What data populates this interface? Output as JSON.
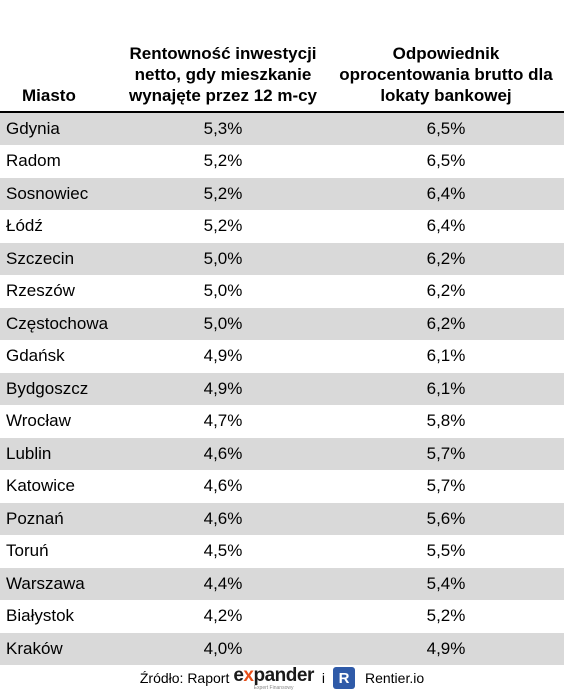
{
  "table": {
    "headers": {
      "city": "Miasto",
      "net_return": "Rentowność inwestycji netto, gdy mieszkanie wynajęte przez 12 m-cy",
      "gross_equivalent": "Odpowiednik oprocentowania brutto dla lokaty bankowej"
    },
    "rows": [
      {
        "city": "Gdynia",
        "net": "5,3%",
        "gross": "6,5%"
      },
      {
        "city": "Radom",
        "net": "5,2%",
        "gross": "6,5%"
      },
      {
        "city": "Sosnowiec",
        "net": "5,2%",
        "gross": "6,4%"
      },
      {
        "city": "Łódź",
        "net": "5,2%",
        "gross": "6,4%"
      },
      {
        "city": "Szczecin",
        "net": "5,0%",
        "gross": "6,2%"
      },
      {
        "city": "Rzeszów",
        "net": "5,0%",
        "gross": "6,2%"
      },
      {
        "city": "Częstochowa",
        "net": "5,0%",
        "gross": "6,2%"
      },
      {
        "city": "Gdańsk",
        "net": "4,9%",
        "gross": "6,1%"
      },
      {
        "city": "Bydgoszcz",
        "net": "4,9%",
        "gross": "6,1%"
      },
      {
        "city": "Wrocław",
        "net": "4,7%",
        "gross": "5,8%"
      },
      {
        "city": "Lublin",
        "net": "4,6%",
        "gross": "5,7%"
      },
      {
        "city": "Katowice",
        "net": "4,6%",
        "gross": "5,7%"
      },
      {
        "city": "Poznań",
        "net": "4,6%",
        "gross": "5,6%"
      },
      {
        "city": "Toruń",
        "net": "4,5%",
        "gross": "5,5%"
      },
      {
        "city": "Warszawa",
        "net": "4,4%",
        "gross": "5,4%"
      },
      {
        "city": "Białystok",
        "net": "4,2%",
        "gross": "5,2%"
      },
      {
        "city": "Kraków",
        "net": "4,0%",
        "gross": "4,9%"
      }
    ]
  },
  "source": {
    "label": "Źródło: Raport",
    "expander_prefix": "e",
    "expander_x": "x",
    "expander_rest": "pander",
    "expander_tagline": "Expert Finansowy",
    "conjunction": "i",
    "rentier_icon_letter": "R",
    "rentier_name": "Rentier.io"
  },
  "colors": {
    "row_shade": "#d9d9d9",
    "expander_accent": "#e8501a",
    "rentier_blue": "#2f5aa8"
  }
}
